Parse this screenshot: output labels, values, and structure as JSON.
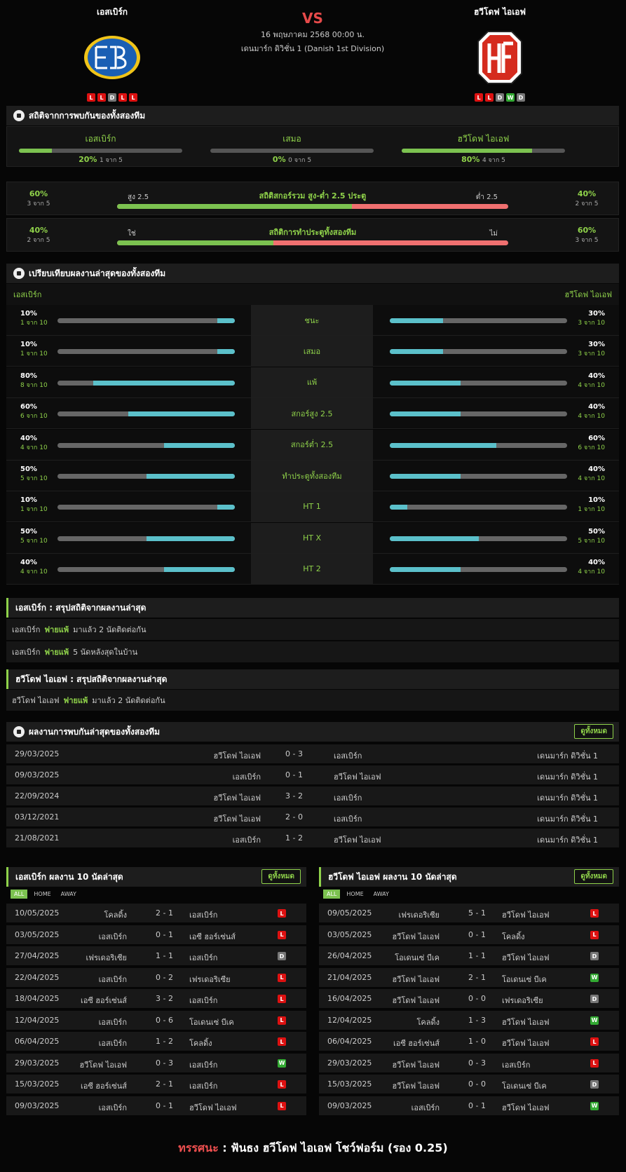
{
  "match": {
    "home": "เอสเบิร์ก",
    "away": "ฮวีโดฟ ไอเอฟ",
    "vs": "VS",
    "date": "16 พฤษภาคม 2568 00:00 น.",
    "league": "เดนมาร์ก ดิวิชั่น 1 (Danish 1st Division)",
    "home_form": [
      "L",
      "L",
      "D",
      "L",
      "L"
    ],
    "away_form": [
      "L",
      "L",
      "D",
      "W",
      "D"
    ]
  },
  "h2h_stats": {
    "title": "สถิติจากการพบกันของทั้งสองทีม",
    "home": {
      "label": "เอสเบิร์ก",
      "pct": "20%",
      "sub": "1 จาก 5",
      "fill": 0.2
    },
    "draw": {
      "label": "เสมอ",
      "pct": "0%",
      "sub": "0 จาก 5",
      "fill": 0.0
    },
    "away": {
      "label": "ฮวีโดฟ ไอเอฟ",
      "pct": "80%",
      "sub": "4 จาก 5",
      "fill": 0.8
    }
  },
  "ou": {
    "title": "สถิติสกอร์รวม สูง-ต่ำ 2.5 ประตู",
    "left_pct": "60%",
    "left_sub": "3 จาก 5",
    "right_pct": "40%",
    "right_sub": "2 จาก 5",
    "left_label": "สูง 2.5",
    "right_label": "ต่ำ 2.5",
    "fill": 0.6
  },
  "btts": {
    "title": "สถิติการทำประตูทั้งสองทีม",
    "left_pct": "40%",
    "left_sub": "2 จาก 5",
    "right_pct": "60%",
    "right_sub": "3 จาก 5",
    "left_label": "ใช่",
    "right_label": "ไม่",
    "fill": 0.4
  },
  "compare": {
    "title": "เปรียบเทียบผลงานล่าสุดของทั้งสองทีม",
    "home": "เอสเบิร์ก",
    "away": "ฮวีโดฟ ไอเอฟ",
    "rows": [
      {
        "label": "ชนะ",
        "hv": "10%",
        "hs": "1 จาก 10",
        "hf": 0.1,
        "av": "30%",
        "as": "3 จาก 10",
        "af": 0.3
      },
      {
        "label": "เสมอ",
        "hv": "10%",
        "hs": "1 จาก 10",
        "hf": 0.1,
        "av": "30%",
        "as": "3 จาก 10",
        "af": 0.3
      },
      {
        "label": "แพ้",
        "hv": "80%",
        "hs": "8 จาก 10",
        "hf": 0.8,
        "av": "40%",
        "as": "4 จาก 10",
        "af": 0.4
      },
      {
        "label": "สกอร์สูง 2.5",
        "hv": "60%",
        "hs": "6 จาก 10",
        "hf": 0.6,
        "av": "40%",
        "as": "4 จาก 10",
        "af": 0.4
      },
      {
        "label": "สกอร์ต่ำ 2.5",
        "hv": "40%",
        "hs": "4 จาก 10",
        "hf": 0.4,
        "av": "60%",
        "as": "6 จาก 10",
        "af": 0.6
      },
      {
        "label": "ทำประตูทั้งสองทีม",
        "hv": "50%",
        "hs": "5 จาก 10",
        "hf": 0.5,
        "av": "40%",
        "as": "4 จาก 10",
        "af": 0.4
      },
      {
        "label": "HT 1",
        "hv": "10%",
        "hs": "1 จาก 10",
        "hf": 0.1,
        "av": "10%",
        "as": "1 จาก 10",
        "af": 0.1
      },
      {
        "label": "HT X",
        "hv": "50%",
        "hs": "5 จาก 10",
        "hf": 0.5,
        "av": "50%",
        "as": "5 จาก 10",
        "af": 0.5
      },
      {
        "label": "HT 2",
        "hv": "40%",
        "hs": "4 จาก 10",
        "hf": 0.4,
        "av": "40%",
        "as": "4 จาก 10",
        "af": 0.4
      }
    ]
  },
  "summary_home": {
    "title": "เอสเบิร์ก : สรุปสถิติจากผลงานล่าสุด",
    "r1": {
      "team": "เอสเบิร์ก",
      "hl": "ฟายแพ้",
      "text": "มาแล้ว 2 นัดติดต่อกัน"
    },
    "r2": {
      "team": "เอสเบิร์ก",
      "hl": "ฟายแพ้",
      "text": "5  นัดหลังสุดในบ้าน"
    }
  },
  "summary_away": {
    "title": "ฮวีโดฟ ไอเอฟ : สรุปสถิติจากผลงานล่าสุด",
    "r1": {
      "team": "ฮวีโดฟ ไอเอฟ",
      "hl": "ฟายแพ้",
      "text": "มาแล้ว 2 นัดติดต่อกัน"
    }
  },
  "h2h": {
    "title": "ผลงานการพบกันล่าสุดของทั้งสองทีม",
    "view_all": "ดูทั้งหมด",
    "rows": [
      {
        "date": "29/03/2025",
        "home": "ฮวีโดฟ ไอเอฟ",
        "score": "0 - 3",
        "away": "เอสเบิร์ก",
        "league": "เดนมาร์ก ดิวิชั่น 1"
      },
      {
        "date": "09/03/2025",
        "home": "เอสเบิร์ก",
        "score": "0 - 1",
        "away": "ฮวีโดฟ ไอเอฟ",
        "league": "เดนมาร์ก ดิวิชั่น 1"
      },
      {
        "date": "22/09/2024",
        "home": "ฮวีโดฟ ไอเอฟ",
        "score": "3 - 2",
        "away": "เอสเบิร์ก",
        "league": "เดนมาร์ก ดิวิชั่น 1"
      },
      {
        "date": "03/12/2021",
        "home": "ฮวีโดฟ ไอเอฟ",
        "score": "2 - 0",
        "away": "เอสเบิร์ก",
        "league": "เดนมาร์ก ดิวิชั่น 1"
      },
      {
        "date": "21/08/2021",
        "home": "เอสเบิร์ก",
        "score": "1 - 2",
        "away": "ฮวีโดฟ ไอเอฟ",
        "league": "เดนมาร์ก ดิวิชั่น 1"
      }
    ]
  },
  "tabs": [
    "ALL",
    "HOME",
    "AWAY"
  ],
  "last_home": {
    "title": "เอสเบิร์ก ผลงาน 10 นัดล่าสุด",
    "view_all": "ดูทั้งหมด",
    "rows": [
      {
        "date": "10/05/2025",
        "home": "โคลดิ้ง",
        "score": "2 - 1",
        "away": "เอสเบิร์ก",
        "r": "L"
      },
      {
        "date": "03/05/2025",
        "home": "เอสเบิร์ก",
        "score": "0 - 1",
        "away": "เอซี ฮอร์เซ่นส์",
        "r": "L"
      },
      {
        "date": "27/04/2025",
        "home": "เฟรเดอริเซีย",
        "score": "1 - 1",
        "away": "เอสเบิร์ก",
        "r": "D"
      },
      {
        "date": "22/04/2025",
        "home": "เอสเบิร์ก",
        "score": "0 - 2",
        "away": "เฟรเดอริเซีย",
        "r": "L"
      },
      {
        "date": "18/04/2025",
        "home": "เอซี ฮอร์เซ่นส์",
        "score": "3 - 2",
        "away": "เอสเบิร์ก",
        "r": "L"
      },
      {
        "date": "12/04/2025",
        "home": "เอสเบิร์ก",
        "score": "0 - 6",
        "away": "โอเดนเซ่ บีเค",
        "r": "L"
      },
      {
        "date": "06/04/2025",
        "home": "เอสเบิร์ก",
        "score": "1 - 2",
        "away": "โคลดิ้ง",
        "r": "L"
      },
      {
        "date": "29/03/2025",
        "home": "ฮวีโดฟ ไอเอฟ",
        "score": "0 - 3",
        "away": "เอสเบิร์ก",
        "r": "W"
      },
      {
        "date": "15/03/2025",
        "home": "เอซี ฮอร์เซ่นส์",
        "score": "2 - 1",
        "away": "เอสเบิร์ก",
        "r": "L"
      },
      {
        "date": "09/03/2025",
        "home": "เอสเบิร์ก",
        "score": "0 - 1",
        "away": "ฮวีโดฟ ไอเอฟ",
        "r": "L"
      }
    ]
  },
  "last_away": {
    "title": "ฮวีโดฟ ไอเอฟ ผลงาน 10 นัดล่าสุด",
    "view_all": "ดูทั้งหมด",
    "rows": [
      {
        "date": "09/05/2025",
        "home": "เฟรเดอริเซีย",
        "score": "5 - 1",
        "away": "ฮวีโดฟ ไอเอฟ",
        "r": "L"
      },
      {
        "date": "03/05/2025",
        "home": "ฮวีโดฟ ไอเอฟ",
        "score": "0 - 1",
        "away": "โคลดิ้ง",
        "r": "L"
      },
      {
        "date": "26/04/2025",
        "home": "โอเดนเซ่ บีเค",
        "score": "1 - 1",
        "away": "ฮวีโดฟ ไอเอฟ",
        "r": "D"
      },
      {
        "date": "21/04/2025",
        "home": "ฮวีโดฟ ไอเอฟ",
        "score": "2 - 1",
        "away": "โอเดนเซ่ บีเค",
        "r": "W"
      },
      {
        "date": "16/04/2025",
        "home": "ฮวีโดฟ ไอเอฟ",
        "score": "0 - 0",
        "away": "เฟรเดอริเซีย",
        "r": "D"
      },
      {
        "date": "12/04/2025",
        "home": "โคลดิ้ง",
        "score": "1 - 3",
        "away": "ฮวีโดฟ ไอเอฟ",
        "r": "W"
      },
      {
        "date": "06/04/2025",
        "home": "เอซี ฮอร์เซ่นส์",
        "score": "1 - 0",
        "away": "ฮวีโดฟ ไอเอฟ",
        "r": "L"
      },
      {
        "date": "29/03/2025",
        "home": "ฮวีโดฟ ไอเอฟ",
        "score": "0 - 3",
        "away": "เอสเบิร์ก",
        "r": "L"
      },
      {
        "date": "15/03/2025",
        "home": "ฮวีโดฟ ไอเอฟ",
        "score": "0 - 0",
        "away": "โอเดนเซ่ บีเค",
        "r": "D"
      },
      {
        "date": "09/03/2025",
        "home": "เอสเบิร์ก",
        "score": "0 - 1",
        "away": "ฮวีโดฟ ไอเอฟ",
        "r": "W"
      }
    ]
  },
  "verdict": {
    "label": "ทรรศนะ",
    "sep": " : ",
    "text": " ฟันธง ฮวีโดฟ ไอเอฟ โชว์ฟอร์ม (รอง 0.25)"
  }
}
